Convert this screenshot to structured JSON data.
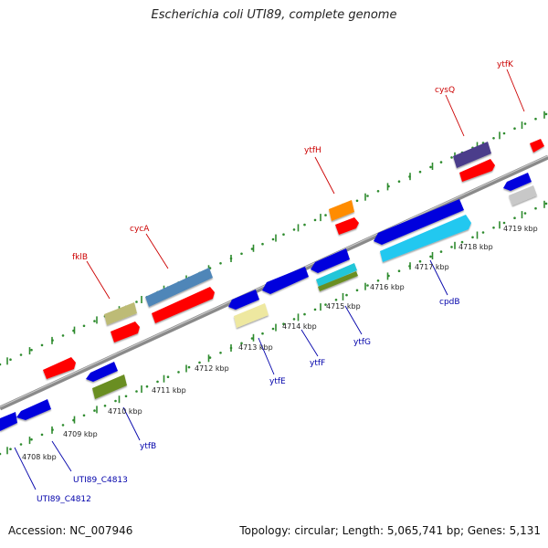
{
  "title": "Escherichia coli UTI89, complete genome",
  "footer": {
    "accession": "Accession: NC_007946",
    "summary": "Topology: circular; Length: 5,065,741 bp; Genes: 5,131"
  },
  "colors": {
    "backbone": "#8a8a8a",
    "tick": "#2e8b2e",
    "top_label": "#cc0000",
    "bottom_label": "#0000aa"
  },
  "kbp_labels": [
    "4708 kbp",
    "4709 kbp",
    "4710 kbp",
    "4711 kbp",
    "4712 kbp",
    "4713 kbp",
    "4714 kbp",
    "4715 kbp",
    "4716 kbp",
    "4717 kbp",
    "4718 kbp",
    "4719 kbp"
  ],
  "gene_labels_top": [
    "fklB",
    "cycA",
    "ytfH",
    "cysQ",
    "ytfK"
  ],
  "gene_labels_bottom": [
    "UTI89_C4812",
    "UTI89_C4813",
    "ytfB",
    "ytfE",
    "ytfF",
    "ytfG",
    "cpdB"
  ]
}
